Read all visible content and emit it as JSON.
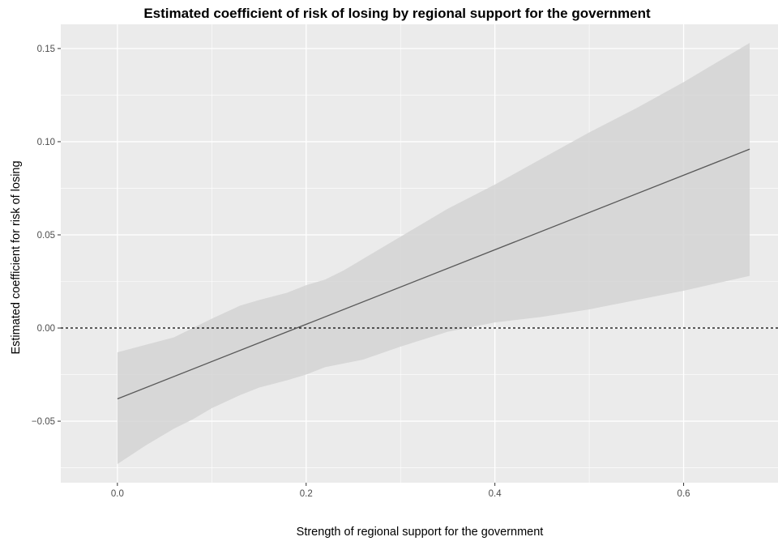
{
  "chart_data": {
    "type": "line",
    "title": "Estimated coefficient of risk of losing by regional support for the government",
    "xlabel": "Strength of regional support for the government",
    "ylabel": "Estimated coefficient for risk of losing",
    "xlim": [
      -0.06,
      0.7
    ],
    "ylim": [
      -0.083,
      0.163
    ],
    "x_ticks": [
      0.0,
      0.2,
      0.4,
      0.6
    ],
    "x_tick_labels": [
      "0.0",
      "0.2",
      "0.4",
      "0.6"
    ],
    "y_ticks": [
      -0.05,
      0.0,
      0.05,
      0.1,
      0.15
    ],
    "y_tick_labels": [
      "−0.05",
      "0.00",
      "0.05",
      "0.10",
      "0.15"
    ],
    "grid": true,
    "reference_line": {
      "y": 0.0,
      "style": "dotted"
    },
    "series": [
      {
        "type": "line",
        "x": [
          0.0,
          0.67
        ],
        "y": [
          -0.038,
          0.096
        ]
      },
      {
        "type": "ribbon",
        "x": [
          0.0,
          0.03,
          0.06,
          0.08,
          0.1,
          0.13,
          0.15,
          0.18,
          0.2,
          0.22,
          0.24,
          0.26,
          0.3,
          0.35,
          0.4,
          0.45,
          0.5,
          0.55,
          0.6,
          0.67
        ],
        "upper": [
          -0.013,
          -0.009,
          -0.005,
          0.0,
          0.005,
          0.012,
          0.015,
          0.019,
          0.023,
          0.026,
          0.031,
          0.037,
          0.049,
          0.064,
          0.077,
          0.091,
          0.105,
          0.118,
          0.132,
          0.153
        ],
        "lower": [
          -0.073,
          -0.063,
          -0.054,
          -0.049,
          -0.043,
          -0.036,
          -0.032,
          -0.028,
          -0.025,
          -0.021,
          -0.019,
          -0.017,
          -0.01,
          -0.002,
          0.003,
          0.006,
          0.01,
          0.015,
          0.02,
          0.028
        ]
      }
    ],
    "colors": {
      "panel": "#ebebeb",
      "grid_major": "#ffffff",
      "ribbon": "#d3d3d3",
      "line": "#595959",
      "reference": "#000000"
    }
  }
}
